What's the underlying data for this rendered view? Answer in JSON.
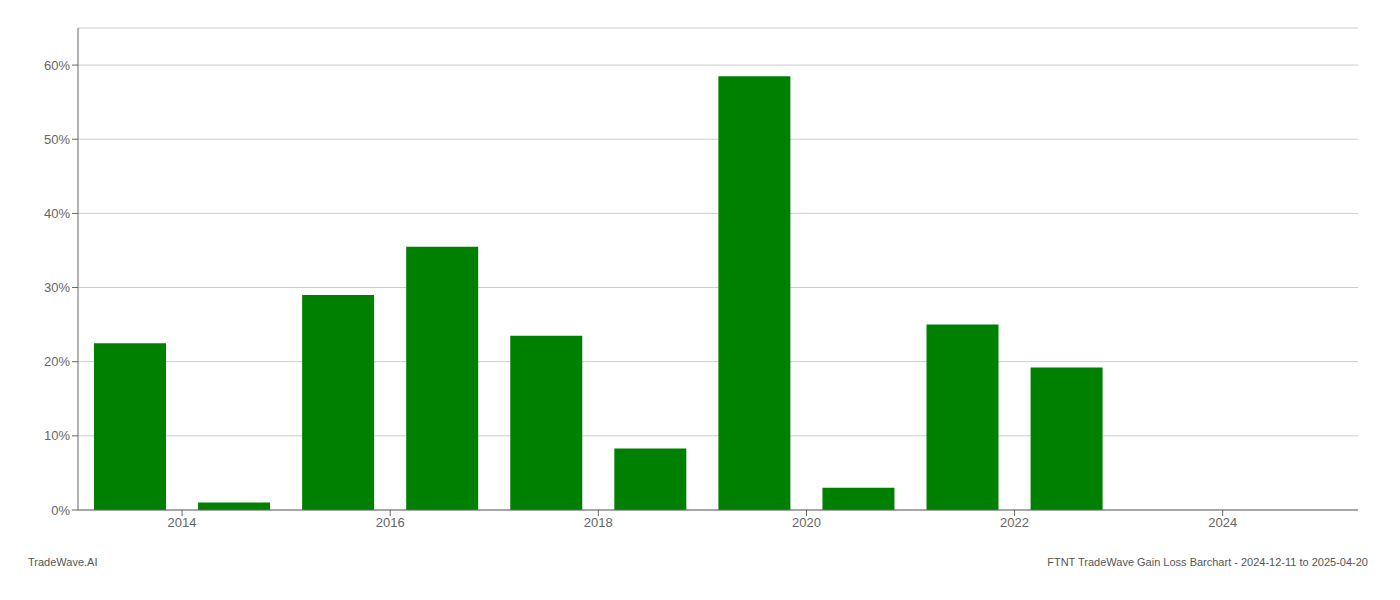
{
  "chart_data": {
    "type": "bar",
    "x": [
      2013,
      2014,
      2015,
      2016,
      2017,
      2018,
      2019,
      2020,
      2021,
      2022,
      2023,
      2024
    ],
    "values": [
      0.225,
      0.01,
      0.29,
      0.355,
      0.235,
      0.083,
      0.585,
      0.03,
      0.25,
      0.192,
      0.0,
      0.0
    ],
    "color": "#008000",
    "xlim": [
      2012.5,
      2024.8
    ],
    "xticks": [
      {
        "value": 2013.5,
        "label": "2014"
      },
      {
        "value": 2015.5,
        "label": "2016"
      },
      {
        "value": 2017.5,
        "label": "2018"
      },
      {
        "value": 2019.5,
        "label": "2020"
      },
      {
        "value": 2021.5,
        "label": "2022"
      },
      {
        "value": 2023.5,
        "label": "2024"
      }
    ],
    "ylim": [
      0,
      0.65
    ],
    "yticks": [
      {
        "value": 0.0,
        "label": "0%"
      },
      {
        "value": 0.1,
        "label": "10%"
      },
      {
        "value": 0.2,
        "label": "20%"
      },
      {
        "value": 0.3,
        "label": "30%"
      },
      {
        "value": 0.4,
        "label": "40%"
      },
      {
        "value": 0.5,
        "label": "50%"
      },
      {
        "value": 0.6,
        "label": "60%"
      }
    ],
    "grid": true,
    "annotations": [
      "TradeWave.AI",
      "FTNT TradeWave Gain Loss Barchart - 2024-12-11 to 2025-04-20"
    ]
  }
}
